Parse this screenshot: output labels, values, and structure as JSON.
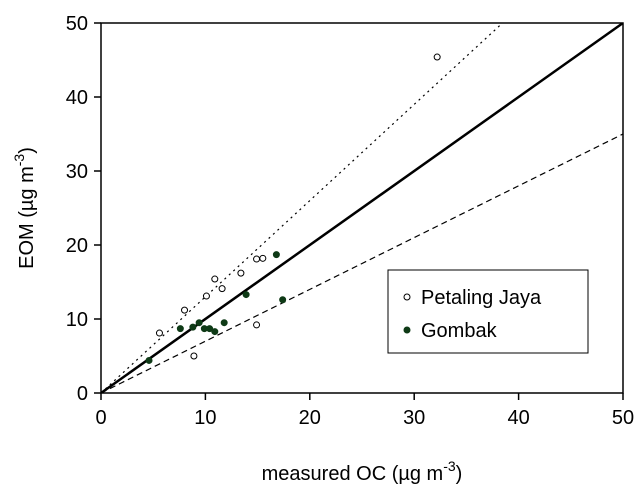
{
  "chart_data": {
    "type": "scatter",
    "xlabel": "measured OC (µg m",
    "xlabel_sup": "-3",
    "xlabel_end": ")",
    "ylabel": "EOM (µg m",
    "ylabel_sup": "-3",
    "ylabel_end": ")",
    "xlim": [
      0,
      50
    ],
    "ylim": [
      0,
      50
    ],
    "x_ticks": [
      0,
      10,
      20,
      30,
      40,
      50
    ],
    "y_ticks": [
      0,
      10,
      20,
      30,
      40,
      50
    ],
    "grid": false,
    "legend_position": "center-right",
    "series": [
      {
        "name": "Petaling Jaya",
        "marker": "open-circle",
        "color": "#000000",
        "points": [
          [
            5.6,
            8.1
          ],
          [
            8.0,
            11.2
          ],
          [
            8.9,
            5.0
          ],
          [
            10.1,
            13.1
          ],
          [
            10.9,
            15.4
          ],
          [
            11.6,
            14.1
          ],
          [
            13.4,
            16.2
          ],
          [
            14.9,
            18.1
          ],
          [
            15.5,
            18.2
          ],
          [
            14.9,
            9.2
          ],
          [
            32.2,
            45.4
          ]
        ]
      },
      {
        "name": "Gombak",
        "marker": "filled-circle",
        "color": "#0e3a16",
        "points": [
          [
            4.6,
            4.4
          ],
          [
            7.6,
            8.7
          ],
          [
            8.8,
            8.9
          ],
          [
            9.4,
            9.5
          ],
          [
            9.9,
            8.7
          ],
          [
            10.4,
            8.7
          ],
          [
            10.9,
            8.3
          ],
          [
            11.8,
            9.5
          ],
          [
            13.9,
            13.3
          ],
          [
            16.8,
            18.7
          ],
          [
            17.4,
            12.6
          ]
        ]
      }
    ],
    "reference_lines": [
      {
        "name": "1:1",
        "style": "solid",
        "slope": 1.0
      },
      {
        "name": "upper",
        "style": "dotted",
        "slope": 1.3
      },
      {
        "name": "lower",
        "style": "dashed",
        "slope": 0.7
      }
    ]
  }
}
